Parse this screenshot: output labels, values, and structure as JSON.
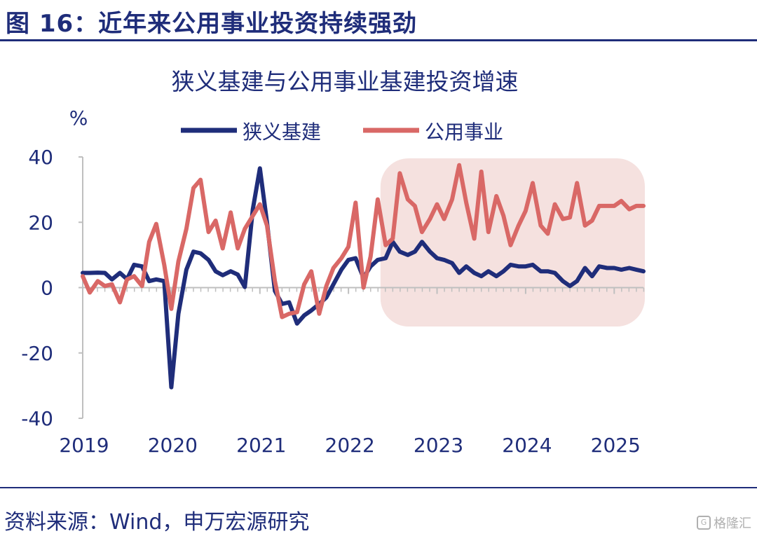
{
  "figure_title": "图 16：近年来公用事业投资持续强劲",
  "source": "资料来源：Wind，申万宏源研究",
  "watermark": "格隆汇",
  "colors": {
    "navy": "#1f2d7a",
    "coral": "#d96866",
    "highlight": "#f5e1df",
    "axis": "#bfbfbf"
  },
  "chart_data": {
    "type": "line",
    "title": "狭义基建与公用事业基建投资增速",
    "ylabel": "%",
    "ylim": [
      -40,
      40
    ],
    "yticks": [
      40,
      20,
      0,
      -20,
      -40
    ],
    "xlim": [
      2019.0,
      2025.33
    ],
    "xticks": [
      "2019",
      "2020",
      "2021",
      "2022",
      "2023",
      "2024",
      "2025"
    ],
    "legend": [
      "狭义基建",
      "公用事业"
    ],
    "highlight_x_range": [
      2022.33,
      2025.33
    ],
    "series": [
      {
        "name": "狭义基建",
        "color": "#1f2d7a",
        "x": [
          2019.0,
          2019.08,
          2019.17,
          2019.25,
          2019.33,
          2019.42,
          2019.5,
          2019.58,
          2019.67,
          2019.75,
          2019.83,
          2019.92,
          2020.0,
          2020.08,
          2020.17,
          2020.25,
          2020.33,
          2020.42,
          2020.5,
          2020.58,
          2020.67,
          2020.75,
          2020.83,
          2020.92,
          2021.0,
          2021.08,
          2021.17,
          2021.25,
          2021.33,
          2021.42,
          2021.5,
          2021.58,
          2021.67,
          2021.75,
          2021.83,
          2021.92,
          2022.0,
          2022.08,
          2022.17,
          2022.25,
          2022.33,
          2022.42,
          2022.5,
          2022.58,
          2022.67,
          2022.75,
          2022.83,
          2022.92,
          2023.0,
          2023.08,
          2023.17,
          2023.25,
          2023.33,
          2023.42,
          2023.5,
          2023.58,
          2023.67,
          2023.75,
          2023.83,
          2023.92,
          2024.0,
          2024.08,
          2024.17,
          2024.25,
          2024.33,
          2024.42,
          2024.5,
          2024.58,
          2024.67,
          2024.75,
          2024.83,
          2024.92,
          2025.0,
          2025.08,
          2025.17,
          2025.25,
          2025.33
        ],
        "y": [
          4.5,
          4.5,
          4.6,
          4.5,
          2.5,
          4.5,
          2.6,
          7.0,
          6.5,
          2.0,
          2.5,
          2.0,
          -30.5,
          -8.0,
          5.5,
          11.0,
          10.5,
          8.5,
          5.0,
          3.8,
          5.0,
          4.0,
          0.2,
          24.0,
          36.5,
          20.0,
          -1.0,
          -5.0,
          -4.5,
          -11.0,
          -8.5,
          -7.0,
          -5.0,
          -3.0,
          1.0,
          5.5,
          8.5,
          9.0,
          3.0,
          6.5,
          8.5,
          9.0,
          14.0,
          11.0,
          10.0,
          11.0,
          14.0,
          11.0,
          9.0,
          8.5,
          7.5,
          4.5,
          6.5,
          4.5,
          3.5,
          5.0,
          3.5,
          5.0,
          7.0,
          6.5,
          6.5,
          7.0,
          5.0,
          5.0,
          4.5,
          2.0,
          0.5,
          2.0,
          6.0,
          3.5,
          6.5,
          6.0,
          6.0,
          5.5,
          6.0,
          5.5,
          5.0
        ]
      },
      {
        "name": "公用事业",
        "color": "#d96866",
        "x": [
          2019.0,
          2019.08,
          2019.17,
          2019.25,
          2019.33,
          2019.42,
          2019.5,
          2019.58,
          2019.67,
          2019.75,
          2019.83,
          2019.92,
          2020.0,
          2020.08,
          2020.17,
          2020.25,
          2020.33,
          2020.42,
          2020.5,
          2020.58,
          2020.67,
          2020.75,
          2020.83,
          2020.92,
          2021.0,
          2021.08,
          2021.17,
          2021.25,
          2021.33,
          2021.42,
          2021.5,
          2021.58,
          2021.67,
          2021.75,
          2021.83,
          2021.92,
          2022.0,
          2022.08,
          2022.17,
          2022.25,
          2022.33,
          2022.42,
          2022.5,
          2022.58,
          2022.67,
          2022.75,
          2022.83,
          2022.92,
          2023.0,
          2023.08,
          2023.17,
          2023.25,
          2023.33,
          2023.42,
          2023.5,
          2023.58,
          2023.67,
          2023.75,
          2023.83,
          2023.92,
          2024.0,
          2024.08,
          2024.17,
          2024.25,
          2024.33,
          2024.42,
          2024.5,
          2024.58,
          2024.67,
          2024.75,
          2024.83,
          2024.92,
          2025.0,
          2025.08,
          2025.17,
          2025.25,
          2025.33
        ],
        "y": [
          3.5,
          -1.5,
          2.0,
          0.5,
          1.0,
          -4.5,
          2.5,
          3.5,
          0.5,
          14.0,
          19.5,
          7.0,
          -6.5,
          8.0,
          18.0,
          30.5,
          33.0,
          17.0,
          20.5,
          12.0,
          23.0,
          12.0,
          18.0,
          22.0,
          25.5,
          19.0,
          2.0,
          -9.0,
          -8.0,
          -7.5,
          1.0,
          5.0,
          -8.0,
          0.5,
          6.0,
          9.0,
          12.5,
          26.0,
          0.0,
          9.5,
          27.0,
          13.0,
          15.0,
          35.0,
          27.0,
          25.0,
          17.0,
          21.0,
          25.5,
          21.0,
          27.0,
          37.5,
          26.0,
          15.0,
          35.5,
          17.0,
          28.0,
          22.0,
          13.0,
          19.0,
          23.5,
          32.0,
          19.0,
          16.5,
          25.5,
          21.0,
          21.5,
          32.0,
          19.0,
          20.5,
          25.0,
          25.0,
          25.0,
          26.5,
          24.0,
          25.0,
          25.0
        ]
      }
    ]
  }
}
